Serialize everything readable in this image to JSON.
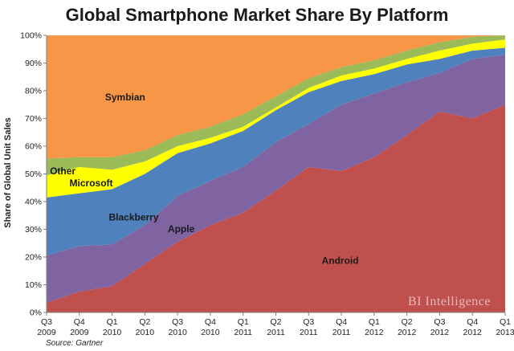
{
  "chart_data": {
    "type": "area",
    "stacked": true,
    "title": "Global Smartphone Market Share By Platform",
    "ylabel": "Share of Global Unit Sales",
    "ylim": [
      0,
      100
    ],
    "yticks": [
      "0%",
      "10%",
      "20%",
      "30%",
      "40%",
      "50%",
      "60%",
      "70%",
      "80%",
      "90%",
      "100%"
    ],
    "categories": [
      [
        "Q3",
        "2009"
      ],
      [
        "Q4",
        "2009"
      ],
      [
        "Q1",
        "2010"
      ],
      [
        "Q2",
        "2010"
      ],
      [
        "Q3",
        "2010"
      ],
      [
        "Q4",
        "2010"
      ],
      [
        "Q1",
        "2011"
      ],
      [
        "Q2",
        "2011"
      ],
      [
        "Q3",
        "2011"
      ],
      [
        "Q4",
        "2011"
      ],
      [
        "Q1",
        "2012"
      ],
      [
        "Q2",
        "2012"
      ],
      [
        "Q3",
        "2012"
      ],
      [
        "Q4",
        "2012"
      ],
      [
        "Q1",
        "2013"
      ]
    ],
    "series": [
      {
        "name": "Android",
        "color": "#c0504d",
        "values": [
          3.5,
          7.5,
          9.5,
          17.5,
          25.5,
          31.5,
          36,
          44,
          52.5,
          51,
          56,
          64,
          72.5,
          70,
          75
        ]
      },
      {
        "name": "Apple",
        "color": "#8064a2",
        "values": [
          17,
          16.5,
          15,
          14,
          16.5,
          16,
          16.5,
          17.5,
          15.5,
          24,
          23,
          19,
          14,
          21.5,
          18
        ]
      },
      {
        "name": "Blackberry",
        "color": "#4f81bd",
        "values": [
          21,
          19,
          20,
          18.5,
          15.5,
          13.5,
          13,
          11.5,
          11.5,
          8.5,
          7,
          6.5,
          5,
          3,
          2.5
        ]
      },
      {
        "name": "Microsoft",
        "color": "#ffff00",
        "values": [
          8,
          9.5,
          7,
          4.5,
          2.5,
          2,
          1.5,
          1,
          1.5,
          2,
          2,
          2,
          3,
          2.5,
          3
        ]
      },
      {
        "name": "Other",
        "color": "#9bbb59",
        "values": [
          6,
          3.5,
          4.5,
          4,
          4,
          4,
          4.5,
          4,
          3.5,
          3,
          3,
          3,
          3,
          2.5,
          1.5
        ]
      },
      {
        "name": "Symbian",
        "color": "#f79646",
        "values": [
          44.5,
          44,
          44,
          41.5,
          36,
          33,
          28.5,
          22,
          15.5,
          11.5,
          9,
          5.5,
          2.5,
          0.5,
          0
        ]
      }
    ],
    "annotations": {
      "watermark": "BI Intelligence",
      "source": "Source: Gartner"
    }
  }
}
